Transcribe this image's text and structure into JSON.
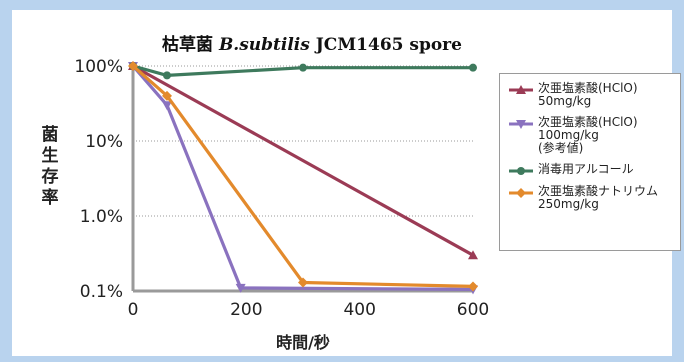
{
  "chart_data": {
    "type": "line",
    "title_prefix": "枯草菌",
    "title_species": "B.subtilis",
    "title_suffix": "JCM1465 spore",
    "xlabel": "時間/秒",
    "ylabel": "菌生存率",
    "x_ticks": [
      0,
      200,
      400,
      600
    ],
    "y_scale": "log",
    "y_ticks": [
      {
        "value": 100,
        "label": "100%"
      },
      {
        "value": 10,
        "label": "10%"
      },
      {
        "value": 1,
        "label": "1.0%"
      },
      {
        "value": 0.1,
        "label": "0.1%"
      }
    ],
    "xlim": [
      0,
      600
    ],
    "ylim": [
      0.1,
      100
    ],
    "grid": "horizontal-dotted",
    "legend_position": "right",
    "series": [
      {
        "name": "次亜塩素酸(HClO)\n50mg/kg",
        "color": "#9b3b55",
        "marker": "triangle",
        "points": [
          [
            0,
            100
          ],
          [
            600,
            0.3
          ]
        ]
      },
      {
        "name": "次亜塩素酸(HClO)\n100mg/kg\n(参考値)",
        "color": "#8a72bf",
        "marker": "triangle-down",
        "points": [
          [
            0,
            100
          ],
          [
            60,
            30
          ],
          [
            190,
            0.11
          ],
          [
            600,
            0.105
          ]
        ]
      },
      {
        "name": "消毒用アルコール",
        "color": "#3e7a5d",
        "marker": "circle",
        "points": [
          [
            0,
            100
          ],
          [
            60,
            75
          ],
          [
            300,
            95
          ],
          [
            600,
            95
          ]
        ]
      },
      {
        "name": "次亜塩素酸ナトリウム\n250mg/kg",
        "color": "#e38a2c",
        "marker": "diamond",
        "points": [
          [
            0,
            100
          ],
          [
            60,
            40
          ],
          [
            300,
            0.13
          ],
          [
            600,
            0.115
          ]
        ]
      }
    ]
  }
}
